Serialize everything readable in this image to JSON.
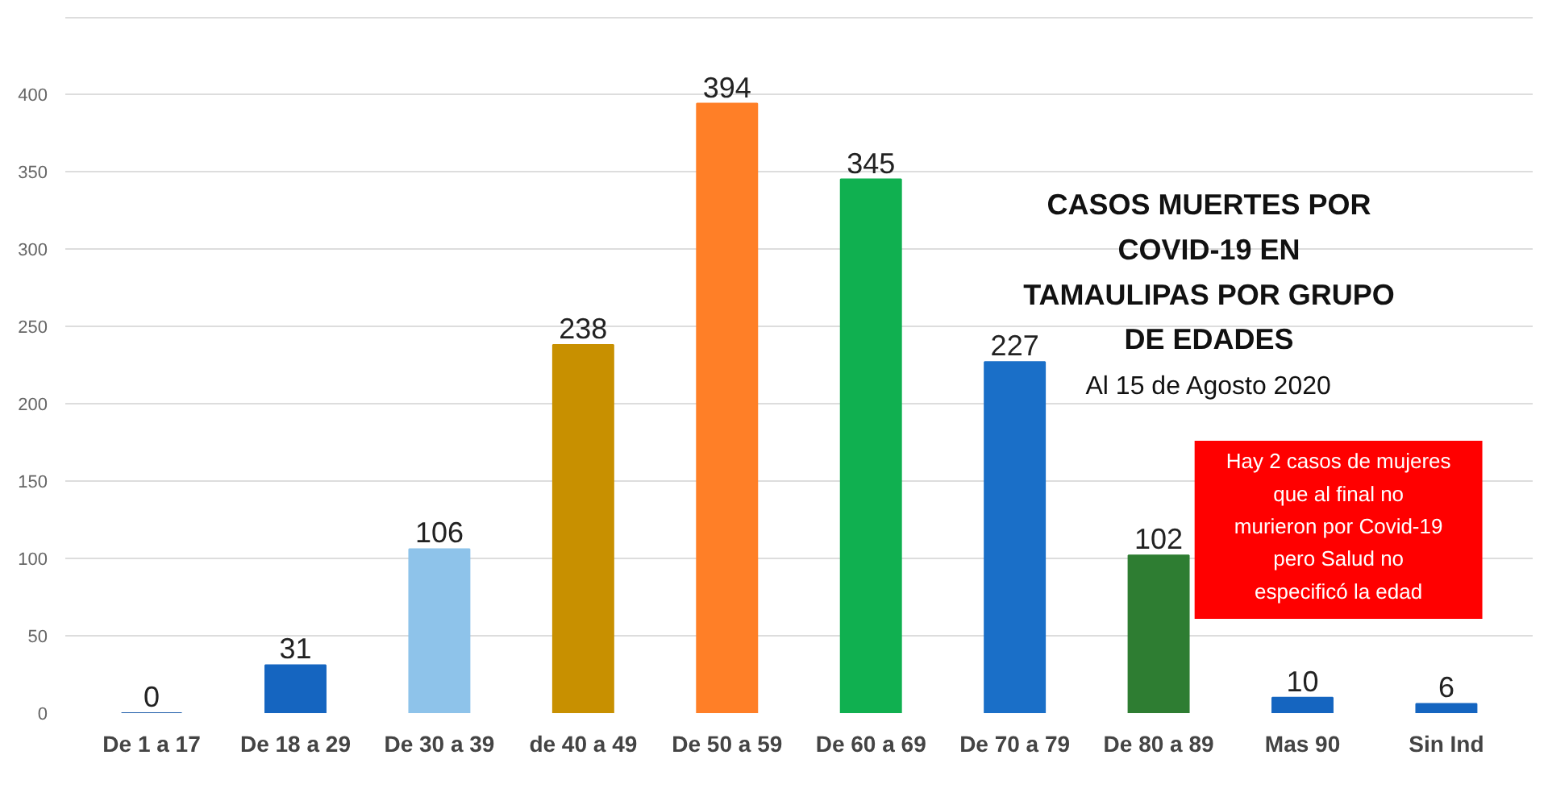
{
  "chart_data": {
    "type": "bar",
    "title": "CASOS MUERTES POR COVID-19 EN TAMAULIPAS POR GRUPO DE EDADES",
    "subtitle": "Al 15 de Agosto 2020",
    "annotations": [
      "Hay 2 casos de mujeres que al final no murieron por Covid-19 pero Salud no especificó la edad"
    ],
    "categories": [
      "De 1 a 17",
      "De 18 a 29",
      "De 30 a 39",
      "de 40 a 49",
      "De 50 a 59",
      "De 60 a 69",
      "De 70 a 79",
      "De 80 a 89",
      "Mas 90",
      "Sin Ind"
    ],
    "values": [
      0,
      31,
      106,
      238,
      394,
      345,
      227,
      102,
      10,
      6
    ],
    "colors": [
      "#1a5aa8",
      "#1565c0",
      "#8ec3ea",
      "#c89000",
      "#ff7f27",
      "#10b050",
      "#1a6fc8",
      "#2e7d32",
      "#1565c0",
      "#1565c0"
    ],
    "ylim": [
      0,
      450
    ],
    "yticks": [
      0,
      50,
      100,
      150,
      200,
      250,
      300,
      350,
      400,
      {
        "value": 450,
        "label": null
      }
    ],
    "grid": "y",
    "data_labels": true
  }
}
